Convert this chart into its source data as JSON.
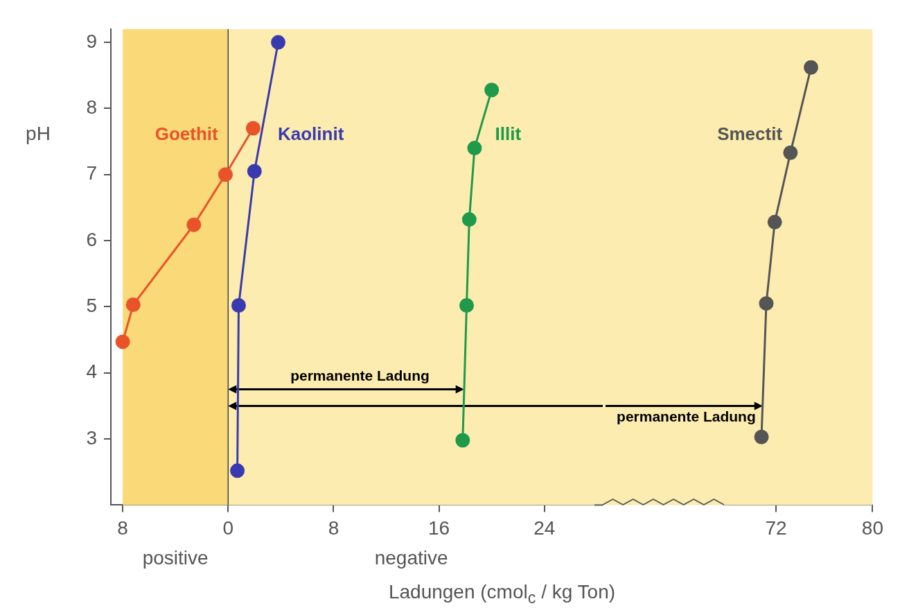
{
  "chart_data": [
    {
      "type": "line",
      "ylabel": "pH",
      "xlim": [
        -8.9,
        27.8
      ],
      "xticks": [
        {
          "value": -8,
          "label": "8"
        },
        0,
        8,
        16,
        24
      ],
      "ylim": [
        2,
        9.2
      ],
      "yticks": [
        3,
        4,
        5,
        6,
        7,
        8,
        9
      ],
      "grid": false,
      "legend": false,
      "marker": "circle",
      "line_style": "solid",
      "series": [
        {
          "name": "Goethit",
          "color": "#e8532a",
          "x": [
            -8,
            -7.2,
            -2.6,
            -0.2,
            1.9
          ],
          "values": [
            4.47,
            5.03,
            6.24,
            7.0,
            7.7
          ]
        },
        {
          "name": "Kaolinit",
          "color": "#3a3ab0",
          "x": [
            0.7,
            0.8,
            2.0,
            3.8
          ],
          "values": [
            2.52,
            5.02,
            7.05,
            9.0
          ]
        },
        {
          "name": "Illit",
          "color": "#1f9a4a",
          "x": [
            17.8,
            18.1,
            18.3,
            18.7,
            20.0
          ],
          "values": [
            2.98,
            5.02,
            6.32,
            7.4,
            8.28
          ]
        }
      ],
      "bands": [
        {
          "axis": "x",
          "from": -8,
          "to": 0,
          "label": "positive",
          "color": "#fad978"
        },
        {
          "axis": "x",
          "from": 0,
          "to": 27.8,
          "label": "negative",
          "color": "#fcecb0"
        }
      ],
      "ref_lines": [
        {
          "axis": "x",
          "value": 0,
          "color": "#444444"
        }
      ],
      "annotations": [
        {
          "text": "permanente Ladung",
          "x": 17.9,
          "y": 3.75
        }
      ]
    },
    {
      "type": "line",
      "xlabel": "Ladungen (cmol$_{c}$ / kg Ton)",
      "xlim": [
        67.7,
        80
      ],
      "xticks": [
        72,
        80
      ],
      "ylim": [
        2,
        9.2
      ],
      "yticks": [
        3,
        4,
        5,
        6,
        7,
        8,
        9
      ],
      "tick_labels": "x",
      "grid": false,
      "legend": false,
      "marker": "circle",
      "line_style": "solid",
      "series": [
        {
          "name": "Smectit",
          "color": "#555555",
          "x": [
            70.8,
            71.2,
            71.9,
            73.2,
            74.9
          ],
          "values": [
            3.03,
            5.05,
            6.28,
            7.33,
            8.62
          ]
        }
      ],
      "bands": [
        {
          "axis": "x",
          "from": 67.7,
          "to": 80,
          "color": "#fcecb0"
        }
      ],
      "annotations": [
        {
          "text": "permanente Ladung",
          "x": 70.9,
          "y": 3.5
        }
      ]
    }
  ]
}
